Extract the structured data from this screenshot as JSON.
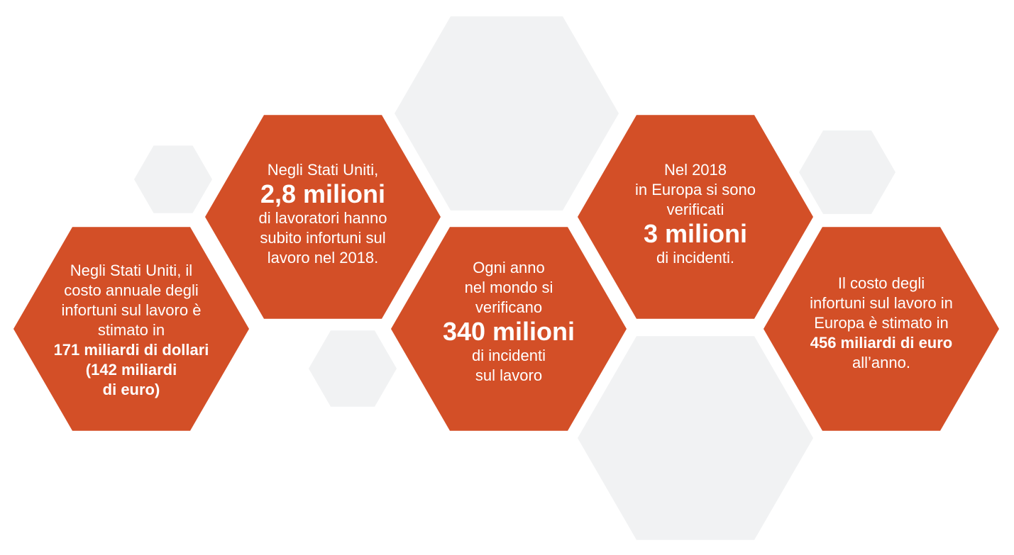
{
  "colors": {
    "accent": "#d34f27",
    "background_hex": "#f1f2f3",
    "text": "#ffffff"
  },
  "cards": [
    {
      "lines": [
        {
          "text": "Negli Stati Uniti, il",
          "style": "n"
        },
        {
          "text": "costo annuale degli",
          "style": "n"
        },
        {
          "text": "infortuni sul lavoro è",
          "style": "n"
        },
        {
          "text": "stimato in",
          "style": "n"
        },
        {
          "text": "171 miliardi di dollari",
          "style": "b"
        },
        {
          "text": "(142 miliardi",
          "style": "b"
        },
        {
          "text": "di euro)",
          "style": "b"
        }
      ]
    },
    {
      "lines": [
        {
          "text": "Negli Stati Uniti,",
          "style": "n"
        },
        {
          "text": "2,8 milioni",
          "style": "big"
        },
        {
          "text": "di lavoratori hanno",
          "style": "n"
        },
        {
          "text": "subito infortuni sul",
          "style": "n"
        },
        {
          "text": "lavoro nel 2018.",
          "style": "n"
        }
      ]
    },
    {
      "lines": [
        {
          "text": "Ogni anno",
          "style": "n"
        },
        {
          "text": "nel mondo si",
          "style": "n"
        },
        {
          "text": "verificano",
          "style": "n"
        },
        {
          "text": "340 milioni",
          "style": "big"
        },
        {
          "text": "di incidenti",
          "style": "n"
        },
        {
          "text": "sul lavoro",
          "style": "n"
        }
      ]
    },
    {
      "lines": [
        {
          "text": "Nel 2018",
          "style": "n"
        },
        {
          "text": "in Europa si sono",
          "style": "n"
        },
        {
          "text": "verificati",
          "style": "n"
        },
        {
          "text": "3 milioni",
          "style": "big"
        },
        {
          "text": "di incidenti.",
          "style": "n"
        }
      ]
    },
    {
      "lines": [
        {
          "text": "Il costo degli",
          "style": "n"
        },
        {
          "text": "infortuni sul lavoro in",
          "style": "n"
        },
        {
          "text": "Europa è stimato in",
          "style": "n"
        },
        {
          "text": "456 miliardi di euro",
          "style": "b"
        },
        {
          "text": "all’anno.",
          "style": "n"
        }
      ]
    }
  ]
}
